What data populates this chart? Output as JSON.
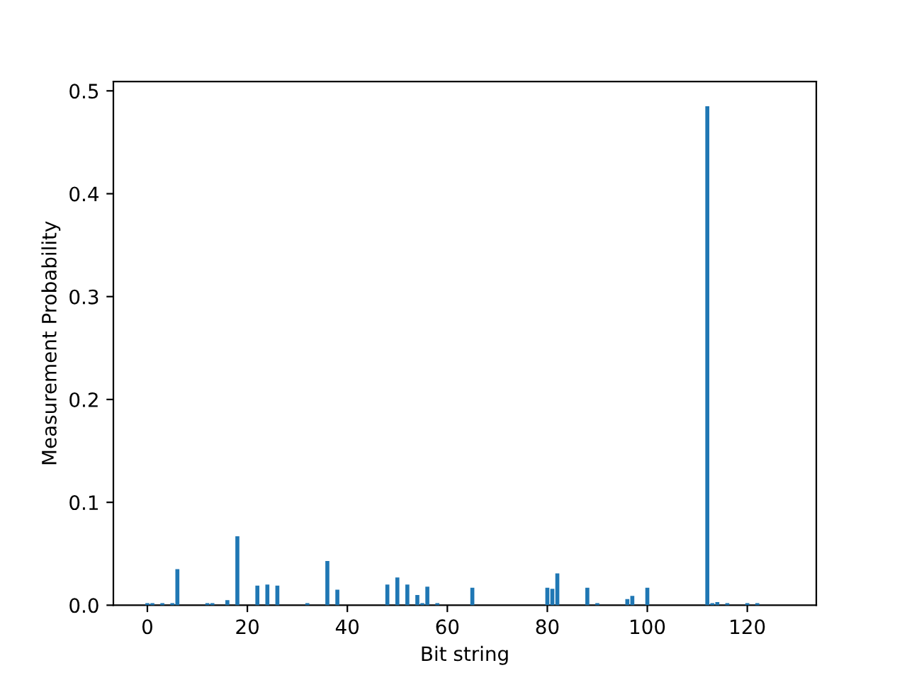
{
  "chart_data": {
    "type": "bar",
    "xlabel": "Bit string",
    "ylabel": "Measurement Probability",
    "x": [
      0,
      1,
      3,
      5,
      6,
      12,
      13,
      16,
      18,
      22,
      24,
      26,
      32,
      36,
      38,
      48,
      50,
      52,
      54,
      55,
      56,
      58,
      65,
      80,
      81,
      82,
      88,
      90,
      96,
      97,
      100,
      112,
      113,
      114,
      116,
      120,
      122
    ],
    "values": [
      0.002,
      0.002,
      0.002,
      0.002,
      0.035,
      0.002,
      0.002,
      0.005,
      0.067,
      0.019,
      0.02,
      0.019,
      0.002,
      0.043,
      0.015,
      0.02,
      0.027,
      0.02,
      0.01,
      0.002,
      0.018,
      0.002,
      0.017,
      0.017,
      0.016,
      0.031,
      0.017,
      0.002,
      0.006,
      0.009,
      0.017,
      0.485,
      0.002,
      0.003,
      0.002,
      0.002,
      0.002
    ],
    "color": "#1f77b4",
    "xlim": [
      -6.8,
      133.8
    ],
    "xticks": [
      0,
      20,
      40,
      60,
      80,
      100,
      120
    ],
    "ylim": [
      0,
      0.509
    ],
    "yticks": [
      {
        "value": 0,
        "label": "0.0"
      },
      0.1,
      0.2,
      0.3,
      0.4,
      0.5
    ],
    "grid": false,
    "legend": false
  }
}
